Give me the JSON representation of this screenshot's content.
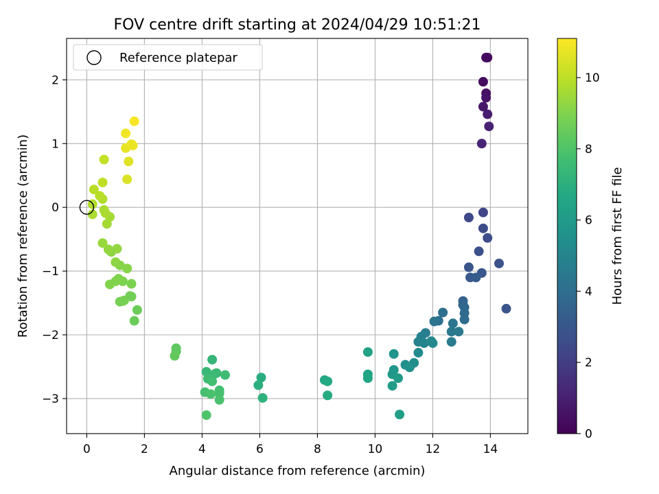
{
  "chart_data": {
    "type": "scatter",
    "title": "FOV centre drift starting at 2024/04/29 10:51:21",
    "xlabel": "Angular distance from reference (arcmin)",
    "ylabel": "Rotation from reference (arcmin)",
    "xlim": [
      -0.7,
      15.3
    ],
    "ylim": [
      -3.55,
      2.65
    ],
    "xticks": [
      0,
      2,
      4,
      6,
      8,
      10,
      12,
      14
    ],
    "yticks": [
      -3,
      -2,
      -1,
      0,
      1,
      2
    ],
    "xtick_labels": [
      "0",
      "2",
      "4",
      "6",
      "8",
      "10",
      "12",
      "14"
    ],
    "ytick_labels": [
      "−3",
      "−2",
      "−1",
      "0",
      "1",
      "2"
    ],
    "grid": true,
    "legend": {
      "position": "top-left",
      "entries": [
        {
          "label": "Reference platepar",
          "marker": "open-circle"
        }
      ]
    },
    "reference_point": {
      "x": 0,
      "y": 0
    },
    "colorbar": {
      "label": "Hours from first FF file",
      "colormap": "viridis",
      "range": [
        0,
        11.1
      ],
      "ticks": [
        0,
        2,
        4,
        6,
        8,
        10
      ],
      "tick_labels": [
        "0",
        "2",
        "4",
        "6",
        "8",
        "10"
      ]
    },
    "points": [
      {
        "x": 13.9,
        "y": 2.35,
        "hours": 0.25
      },
      {
        "x": 13.85,
        "y": 2.35,
        "hours": 0.3
      },
      {
        "x": 13.75,
        "y": 1.97,
        "hours": 0.35
      },
      {
        "x": 13.85,
        "y": 1.79,
        "hours": 0.5
      },
      {
        "x": 13.85,
        "y": 1.72,
        "hours": 0.6
      },
      {
        "x": 13.75,
        "y": 1.58,
        "hours": 0.7
      },
      {
        "x": 13.9,
        "y": 1.46,
        "hours": 0.9
      },
      {
        "x": 13.95,
        "y": 1.27,
        "hours": 1.0
      },
      {
        "x": 13.7,
        "y": 1.0,
        "hours": 1.1
      },
      {
        "x": 13.75,
        "y": -0.08,
        "hours": 2.3
      },
      {
        "x": 13.25,
        "y": -0.16,
        "hours": 2.4
      },
      {
        "x": 13.75,
        "y": -0.33,
        "hours": 2.5
      },
      {
        "x": 13.9,
        "y": -0.48,
        "hours": 2.6
      },
      {
        "x": 13.6,
        "y": -0.69,
        "hours": 2.7
      },
      {
        "x": 14.3,
        "y": -0.88,
        "hours": 2.8
      },
      {
        "x": 13.25,
        "y": -0.94,
        "hours": 2.9
      },
      {
        "x": 13.7,
        "y": -1.03,
        "hours": 3.0
      },
      {
        "x": 13.3,
        "y": -1.1,
        "hours": 3.1
      },
      {
        "x": 13.5,
        "y": -1.1,
        "hours": 3.2
      },
      {
        "x": 14.55,
        "y": -1.59,
        "hours": 2.9
      },
      {
        "x": 13.05,
        "y": -1.47,
        "hours": 3.5
      },
      {
        "x": 13.05,
        "y": -1.53,
        "hours": 3.6
      },
      {
        "x": 13.1,
        "y": -1.57,
        "hours": 3.7
      },
      {
        "x": 13.1,
        "y": -1.66,
        "hours": 3.8
      },
      {
        "x": 13.1,
        "y": -1.76,
        "hours": 3.9
      },
      {
        "x": 12.35,
        "y": -1.65,
        "hours": 4.0
      },
      {
        "x": 12.2,
        "y": -1.78,
        "hours": 4.1
      },
      {
        "x": 12.05,
        "y": -1.79,
        "hours": 4.2
      },
      {
        "x": 12.7,
        "y": -1.82,
        "hours": 4.3
      },
      {
        "x": 12.65,
        "y": -1.95,
        "hours": 4.4
      },
      {
        "x": 12.9,
        "y": -1.95,
        "hours": 4.5
      },
      {
        "x": 12.65,
        "y": -2.11,
        "hours": 4.6
      },
      {
        "x": 11.75,
        "y": -1.97,
        "hours": 4.7
      },
      {
        "x": 11.6,
        "y": -2.03,
        "hours": 4.8
      },
      {
        "x": 11.5,
        "y": -2.11,
        "hours": 4.9
      },
      {
        "x": 11.7,
        "y": -2.13,
        "hours": 5.0
      },
      {
        "x": 11.95,
        "y": -2.1,
        "hours": 5.1
      },
      {
        "x": 12.0,
        "y": -2.13,
        "hours": 5.2
      },
      {
        "x": 11.5,
        "y": -2.28,
        "hours": 5.3
      },
      {
        "x": 11.35,
        "y": -2.44,
        "hours": 5.4
      },
      {
        "x": 11.05,
        "y": -2.47,
        "hours": 5.5
      },
      {
        "x": 11.2,
        "y": -2.51,
        "hours": 5.6
      },
      {
        "x": 10.65,
        "y": -2.3,
        "hours": 5.7
      },
      {
        "x": 10.65,
        "y": -2.55,
        "hours": 5.8
      },
      {
        "x": 10.6,
        "y": -2.62,
        "hours": 5.9
      },
      {
        "x": 10.8,
        "y": -2.68,
        "hours": 6.0
      },
      {
        "x": 10.6,
        "y": -2.8,
        "hours": 6.1
      },
      {
        "x": 10.85,
        "y": -3.25,
        "hours": 6.2
      },
      {
        "x": 9.75,
        "y": -2.27,
        "hours": 6.3
      },
      {
        "x": 9.75,
        "y": -2.62,
        "hours": 6.4
      },
      {
        "x": 9.75,
        "y": -2.68,
        "hours": 6.5
      },
      {
        "x": 8.25,
        "y": -2.71,
        "hours": 6.6
      },
      {
        "x": 8.35,
        "y": -2.73,
        "hours": 6.7
      },
      {
        "x": 8.35,
        "y": -2.95,
        "hours": 6.8
      },
      {
        "x": 6.05,
        "y": -2.67,
        "hours": 6.9
      },
      {
        "x": 5.95,
        "y": -2.79,
        "hours": 7.0
      },
      {
        "x": 6.1,
        "y": -2.99,
        "hours": 7.1
      },
      {
        "x": 4.35,
        "y": -2.39,
        "hours": 7.3
      },
      {
        "x": 4.15,
        "y": -2.58,
        "hours": 7.4
      },
      {
        "x": 4.5,
        "y": -2.6,
        "hours": 7.5
      },
      {
        "x": 4.45,
        "y": -2.61,
        "hours": 7.5
      },
      {
        "x": 4.8,
        "y": -2.63,
        "hours": 7.6
      },
      {
        "x": 4.2,
        "y": -2.69,
        "hours": 7.6
      },
      {
        "x": 4.35,
        "y": -2.73,
        "hours": 7.7
      },
      {
        "x": 4.6,
        "y": -2.87,
        "hours": 7.7
      },
      {
        "x": 4.6,
        "y": -2.92,
        "hours": 7.8
      },
      {
        "x": 4.1,
        "y": -2.9,
        "hours": 7.8
      },
      {
        "x": 4.3,
        "y": -2.93,
        "hours": 7.9
      },
      {
        "x": 4.6,
        "y": -3.02,
        "hours": 7.9
      },
      {
        "x": 4.15,
        "y": -3.26,
        "hours": 8.0
      },
      {
        "x": 3.1,
        "y": -2.21,
        "hours": 8.3
      },
      {
        "x": 3.1,
        "y": -2.26,
        "hours": 8.35
      },
      {
        "x": 3.05,
        "y": -2.33,
        "hours": 8.4
      },
      {
        "x": 1.75,
        "y": -1.61,
        "hours": 8.6
      },
      {
        "x": 1.65,
        "y": -1.78,
        "hours": 8.6
      },
      {
        "x": 1.5,
        "y": -1.39,
        "hours": 8.7
      },
      {
        "x": 1.55,
        "y": -1.4,
        "hours": 8.7
      },
      {
        "x": 1.3,
        "y": -1.46,
        "hours": 8.8
      },
      {
        "x": 1.15,
        "y": -1.48,
        "hours": 8.8
      },
      {
        "x": 1.25,
        "y": -1.47,
        "hours": 8.8
      },
      {
        "x": 1.55,
        "y": -1.2,
        "hours": 8.9
      },
      {
        "x": 1.25,
        "y": -1.16,
        "hours": 8.9
      },
      {
        "x": 1.1,
        "y": -1.12,
        "hours": 9.0
      },
      {
        "x": 1.0,
        "y": -1.16,
        "hours": 9.0
      },
      {
        "x": 0.8,
        "y": -1.21,
        "hours": 9.0
      },
      {
        "x": 1.4,
        "y": -0.96,
        "hours": 9.1
      },
      {
        "x": 1.15,
        "y": -0.91,
        "hours": 9.1
      },
      {
        "x": 1.0,
        "y": -0.86,
        "hours": 9.2
      },
      {
        "x": 0.85,
        "y": -0.7,
        "hours": 9.2
      },
      {
        "x": 0.75,
        "y": -0.66,
        "hours": 9.3
      },
      {
        "x": 1.05,
        "y": -0.65,
        "hours": 9.3
      },
      {
        "x": 0.55,
        "y": -0.56,
        "hours": 9.4
      },
      {
        "x": 0.7,
        "y": -0.26,
        "hours": 9.6
      },
      {
        "x": 0.8,
        "y": -0.15,
        "hours": 9.6
      },
      {
        "x": 0.65,
        "y": -0.09,
        "hours": 9.7
      },
      {
        "x": 0.6,
        "y": -0.04,
        "hours": 9.7
      },
      {
        "x": 0.2,
        "y": -0.11,
        "hours": 9.7
      },
      {
        "x": 0.2,
        "y": 0.05,
        "hours": 9.8
      },
      {
        "x": 0.55,
        "y": 0.13,
        "hours": 9.8
      },
      {
        "x": 0.45,
        "y": 0.18,
        "hours": 9.9
      },
      {
        "x": 0.25,
        "y": 0.28,
        "hours": 9.9
      },
      {
        "x": 0.55,
        "y": 0.39,
        "hours": 10.0
      },
      {
        "x": 0.6,
        "y": 0.75,
        "hours": 10.1
      },
      {
        "x": 1.4,
        "y": 0.44,
        "hours": 10.5
      },
      {
        "x": 1.45,
        "y": 0.72,
        "hours": 10.6
      },
      {
        "x": 1.35,
        "y": 0.93,
        "hours": 10.7
      },
      {
        "x": 1.6,
        "y": 0.97,
        "hours": 10.8
      },
      {
        "x": 1.55,
        "y": 0.99,
        "hours": 10.8
      },
      {
        "x": 1.35,
        "y": 1.16,
        "hours": 10.9
      },
      {
        "x": 1.65,
        "y": 1.35,
        "hours": 11.0
      }
    ]
  }
}
